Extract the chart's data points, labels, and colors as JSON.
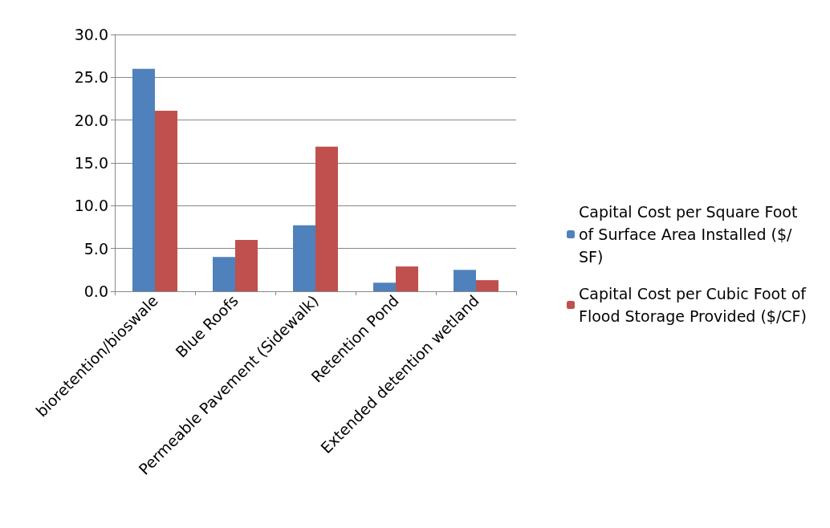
{
  "chart_data": {
    "type": "bar",
    "categories": [
      "bioretention/bioswale",
      "Blue Roofs",
      "Permeable Pavement (Sidewalk)",
      "Retention Pond",
      "Extended detention wetland"
    ],
    "series": [
      {
        "name": "Capital Cost per Square Foot of Surface Area Installed ($/SF)",
        "color": "#4f81bd",
        "values": [
          26.0,
          4.0,
          7.7,
          1.0,
          2.5
        ]
      },
      {
        "name": "Capital Cost per Cubic Foot of Flood Storage Provided ($/CF)",
        "color": "#c0504d",
        "values": [
          21.1,
          6.0,
          16.9,
          2.9,
          1.3
        ]
      }
    ],
    "ylim": [
      0,
      30
    ],
    "yticks": [
      {
        "value": 0,
        "label": "0.0"
      },
      {
        "value": 5,
        "label": "5.0"
      },
      {
        "value": 10,
        "label": "10.0"
      },
      {
        "value": 15,
        "label": "15.0"
      },
      {
        "value": 20,
        "label": "20.0"
      },
      {
        "value": 25,
        "label": "25.0"
      },
      {
        "value": 30,
        "label": "30.0"
      }
    ],
    "grid": "y",
    "legend": "right"
  }
}
